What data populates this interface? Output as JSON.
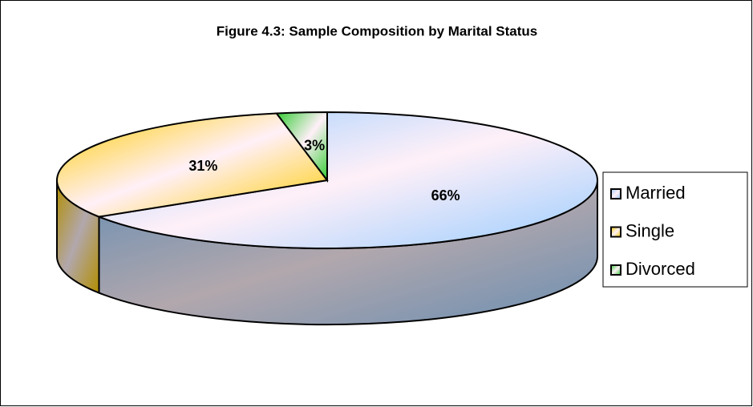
{
  "chart_data": {
    "type": "pie",
    "title": "Figure 4.3: Sample Composition by Marital Status",
    "categories": [
      "Married",
      "Single",
      "Divorced"
    ],
    "values": [
      66,
      31,
      3
    ],
    "value_labels": [
      "66%",
      "31%",
      "3%"
    ],
    "colors": [
      "#99ccff",
      "#ffcc00",
      "#33cc33"
    ],
    "legend": "right"
  }
}
